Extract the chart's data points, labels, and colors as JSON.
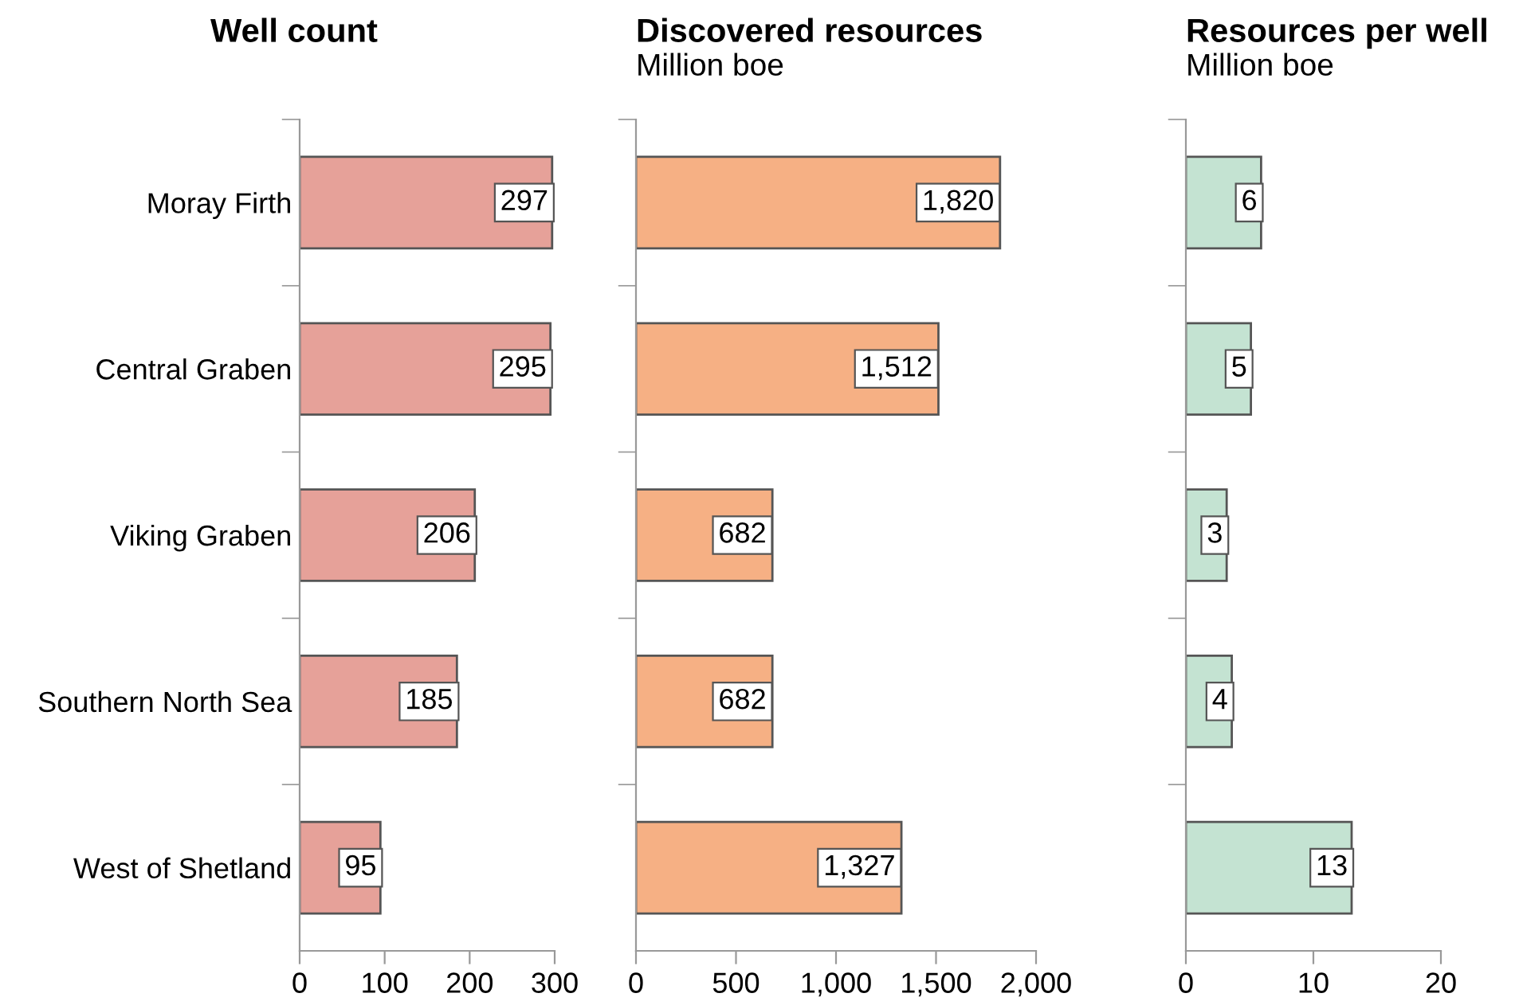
{
  "chart_data": [
    {
      "type": "bar",
      "orientation": "horizontal",
      "title": "Well count",
      "categories": [
        "Moray Firth",
        "Central Graben",
        "Viking Graben",
        "Southern North Sea",
        "West of Shetland"
      ],
      "values": [
        297,
        295,
        206,
        185,
        95
      ],
      "color": "#e6a199",
      "data_labels": true,
      "xlim": [
        0,
        300
      ],
      "xticks": [
        0,
        100,
        200,
        300
      ],
      "grid": false
    },
    {
      "type": "bar",
      "orientation": "horizontal",
      "title": "Discovered resources",
      "subtitle": "Million boe",
      "categories": [
        null,
        null,
        null,
        null,
        null
      ],
      "values": [
        1820,
        1512,
        682,
        682,
        1327
      ],
      "value_labels": [
        "1,820",
        "1,512",
        "682",
        "682",
        "1,327"
      ],
      "color": "#f6b084",
      "xlim": [
        0,
        2000
      ],
      "xticks": [
        0,
        500,
        {
          "value": 1000,
          "label": "1,000"
        },
        {
          "value": 1500,
          "label": "1,500"
        },
        {
          "value": 2000,
          "label": "2,000"
        }
      ],
      "tick_labels": "x",
      "grid": false
    },
    {
      "type": "bar",
      "orientation": "horizontal",
      "title": "Resources per well",
      "subtitle": "Million boe",
      "categories": [
        null,
        null,
        null,
        null,
        null
      ],
      "values": [
        5.9,
        5.1,
        3.2,
        3.6,
        13.0
      ],
      "value_labels": [
        "6",
        "5",
        "3",
        "4",
        "13"
      ],
      "color": "#c4e3d2",
      "xlim": [
        0,
        20
      ],
      "xticks": [
        0,
        10,
        20
      ],
      "tick_labels": "x",
      "grid": false
    }
  ]
}
